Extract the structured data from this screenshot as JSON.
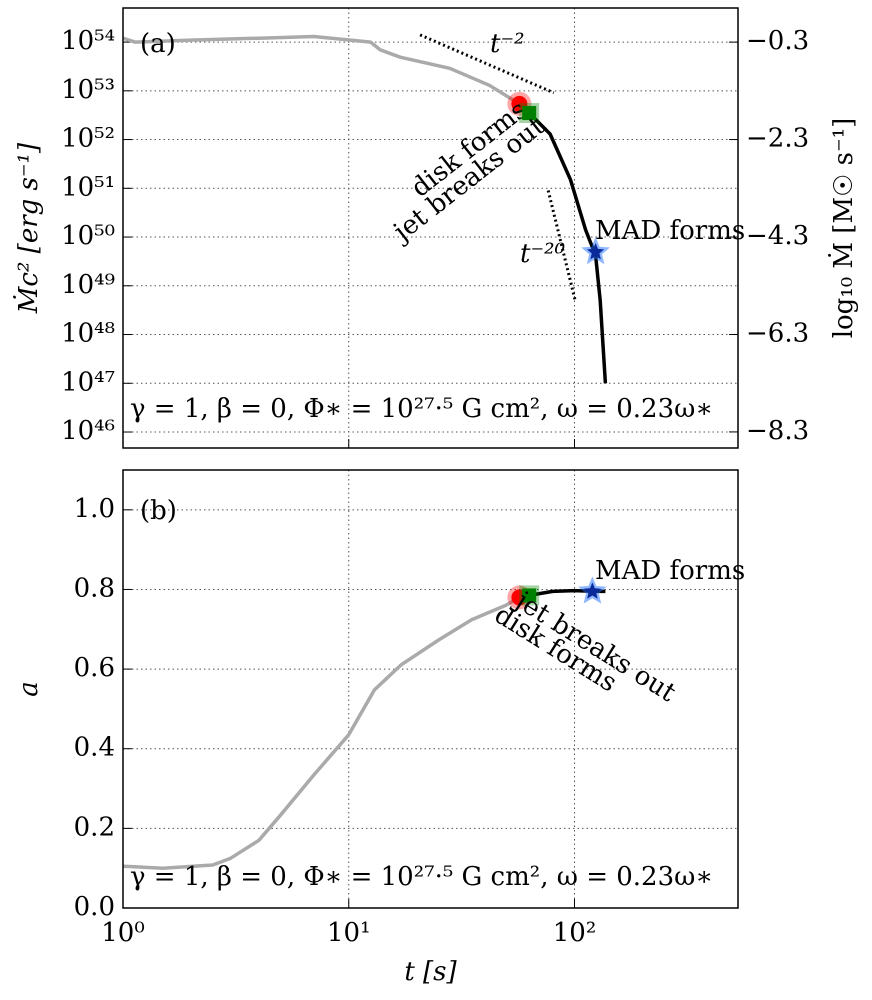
{
  "chart_data": [
    {
      "type": "line",
      "panel_label": "(a)",
      "xscale": "log",
      "yscale": "log",
      "xlim": [
        1,
        530
      ],
      "ylim": [
        4.7e+45,
        5e+54
      ],
      "xtick_labels": false,
      "xticks": [
        1,
        10,
        100
      ],
      "yticks": [
        {
          "value": 1e+46,
          "label": "10⁴⁶"
        },
        {
          "value": 1e+47,
          "label": "10⁴⁷"
        },
        {
          "value": 1e+48,
          "label": "10⁴⁸"
        },
        {
          "value": 1e+49,
          "label": "10⁴⁹"
        },
        {
          "value": 1e+50,
          "label": "10⁵⁰"
        },
        {
          "value": 1e+51,
          "label": "10⁵¹"
        },
        {
          "value": 1e+52,
          "label": "10⁵²"
        },
        {
          "value": 1e+53,
          "label": "10⁵³"
        },
        {
          "value": 1e+54,
          "label": "10⁵⁴"
        }
      ],
      "y2lim": [
        -8.63,
        0.4
      ],
      "y2ticks": [
        {
          "value": -8.3,
          "label": "−8.3"
        },
        {
          "value": -6.3,
          "label": "−6.3"
        },
        {
          "value": -4.3,
          "label": "−4.3"
        },
        {
          "value": -2.3,
          "label": "−2.3"
        },
        {
          "value": -0.3,
          "label": "−0.3"
        }
      ],
      "ylabel": "Ṁc² [erg s⁻¹]",
      "y2label": "log₁₀ Ṁ [M☉ s⁻¹]",
      "grid": true,
      "series": [
        {
          "color": "#aaaaaa",
          "x": [
            1,
            1.13,
            2,
            4,
            7,
            12.5,
            13.8,
            16.9,
            28,
            42,
            57
          ],
          "values": [
            1.2e+54,
            1e+54,
            1.1e+54,
            1.2e+54,
            1.3e+54,
            1e+54,
            6.9e+53,
            4.9e+53,
            2.9e+53,
            1.3e+53,
            5.4e+52
          ]
        },
        {
          "color": "#000000",
          "x": [
            57,
            63,
            78,
            96,
            112,
            124,
            130,
            137
          ],
          "values": [
            5.4e+52,
            3.5e+52,
            1.3e+52,
            1.5e+51,
            1.4e+50,
            4.2e+49,
            5e+48,
            1e+47
          ]
        }
      ],
      "guides": [
        {
          "label": "t⁻²",
          "x": [
            20.7,
            81
          ],
          "values": [
            1.4e+54,
            9.1e+52
          ]
        },
        {
          "label": "t⁻²⁰",
          "x": [
            76.5,
            101
          ],
          "values": [
            9e+50,
            4.7e+48
          ]
        }
      ],
      "markers": [
        {
          "label": "disk forms",
          "shape": "circle",
          "color": "#ff0000",
          "x": 57,
          "value": 5.4e+52
        },
        {
          "label": "jet breaks out",
          "shape": "square",
          "color": "#008000",
          "x": 63,
          "value": 3.5e+52
        },
        {
          "label": "MAD forms",
          "shape": "star",
          "color": "#1e6fff",
          "label_color": "#4a4aff",
          "x": 124,
          "value": 4.9e+49
        }
      ],
      "annotation": "γ = 1, β = 0, Φ∗ = 10²⁷·⁵ G cm², ω = 0.23ω∗"
    },
    {
      "type": "line",
      "panel_label": "(b)",
      "xscale": "log",
      "yscale": "linear",
      "xlim": [
        1,
        530
      ],
      "ylim": [
        0,
        1.1
      ],
      "xtick_labels": true,
      "xticks": [
        {
          "value": 1,
          "label": "10⁰"
        },
        {
          "value": 10,
          "label": "10¹"
        },
        {
          "value": 100,
          "label": "10²"
        }
      ],
      "yticks": [
        {
          "value": 0,
          "label": "0.0"
        },
        0.2,
        0.4,
        0.6,
        0.8,
        {
          "value": 1,
          "label": "1.0"
        }
      ],
      "ylabel": "a",
      "xlabel": "t [s]",
      "grid": true,
      "series": [
        {
          "color": "#aaaaaa",
          "x": [
            1,
            1.5,
            2.5,
            3,
            4,
            5,
            7,
            10,
            13,
            17,
            25,
            35,
            50,
            57
          ],
          "values": [
            0.105,
            0.1,
            0.108,
            0.125,
            0.17,
            0.234,
            0.334,
            0.435,
            0.548,
            0.61,
            0.673,
            0.724,
            0.761,
            0.78
          ]
        },
        {
          "color": "#000000",
          "x": [
            57,
            63,
            80,
            100,
            124,
            137
          ],
          "values": [
            0.78,
            0.785,
            0.795,
            0.797,
            0.795,
            0.795
          ]
        }
      ],
      "markers": [
        {
          "label": "disk forms",
          "shape": "circle",
          "color": "#ff0000",
          "x": 57,
          "value": 0.78
        },
        {
          "label": "jet breaks out",
          "shape": "square",
          "color": "#008000",
          "x": 63,
          "value": 0.785
        },
        {
          "label": "MAD forms",
          "shape": "star",
          "color": "#1e6fff",
          "label_color": "#4a4aff",
          "x": 120,
          "value": 0.795
        }
      ],
      "annotation": "γ = 1, β = 0, Φ∗ = 10²⁷·⁵ G cm², ω = 0.23ω∗"
    }
  ]
}
